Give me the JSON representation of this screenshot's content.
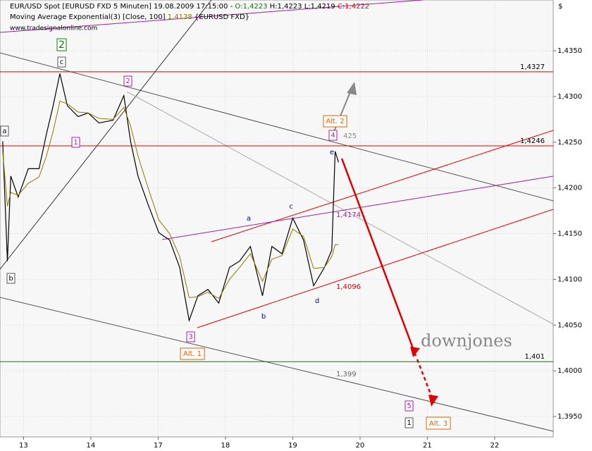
{
  "chart_data": {
    "type": "line",
    "title": "EUR/USD Spot [EURUSD FXD  5 Minuten] 19.08.2009 17:15:00 -",
    "quote": [
      "O:1,4223",
      "H:1,4223",
      "L:1,4219",
      "C:1,4222"
    ],
    "indicator": [
      "Moving Average Exponential(3) [Close, 100]",
      "1,4138",
      "{EURUSD FXD}"
    ],
    "source": "www.tradesignalonline.com",
    "currency": "$",
    "x": [
      -0.31,
      -0.24,
      -0.19,
      -0.08,
      0.07,
      0.23,
      0.34,
      0.44,
      0.54,
      0.65,
      0.81,
      0.96,
      1.12,
      1.33,
      1.49,
      1.59,
      1.7,
      1.85,
      2.01,
      2.17,
      2.32,
      2.46,
      2.59,
      2.74,
      2.9,
      3.06,
      3.21,
      3.37,
      3.55,
      3.69,
      3.84,
      4.0,
      4.16,
      4.31,
      4.47,
      4.58,
      4.63,
      4.68
    ],
    "series": [
      {
        "name": "EUR/USD",
        "color": "#000000",
        "values": [
          1.4251,
          1.412,
          1.4213,
          1.419,
          1.4221,
          1.4221,
          1.4259,
          1.429,
          1.4325,
          1.429,
          1.4278,
          1.4282,
          1.4271,
          1.4274,
          1.4301,
          1.4251,
          1.4213,
          1.4182,
          1.4151,
          1.4143,
          1.4113,
          1.4055,
          1.4082,
          1.4089,
          1.4074,
          1.4113,
          1.412,
          1.4136,
          1.4082,
          1.4136,
          1.4128,
          1.4167,
          1.4143,
          1.4093,
          1.4113,
          1.4132,
          1.424,
          1.4228
        ]
      },
      {
        "name": "EMA(3)",
        "color": "#8a7a00",
        "values": [
          1.424,
          1.418,
          1.4195,
          1.4192,
          1.4205,
          1.4212,
          1.4235,
          1.4262,
          1.4295,
          1.4292,
          1.4283,
          1.4282,
          1.4276,
          1.4275,
          1.4288,
          1.4268,
          1.4235,
          1.42,
          1.4165,
          1.415,
          1.4125,
          1.408,
          1.4081,
          1.4086,
          1.4079,
          1.41,
          1.4113,
          1.4128,
          1.4098,
          1.4122,
          1.4126,
          1.4155,
          1.4147,
          1.4112,
          1.4113,
          1.4125,
          1.4138,
          1.4138
        ]
      }
    ],
    "xlim": [
      -0.35,
      7.87
    ],
    "ylim": [
      1.39277,
      1.44055
    ],
    "xticks": [
      {
        "value": 0,
        "label": "13"
      },
      {
        "value": 1,
        "label": "14"
      },
      {
        "value": 2,
        "label": "17"
      },
      {
        "value": 3,
        "label": "18"
      },
      {
        "value": 4,
        "label": "19"
      },
      {
        "value": 5,
        "label": "20"
      },
      {
        "value": 6,
        "label": "21"
      },
      {
        "value": 7,
        "label": "22"
      }
    ],
    "yticks": [
      {
        "value": 1.395,
        "label": "1,3950"
      },
      {
        "value": 1.4,
        "label": "1,4000"
      },
      {
        "value": 1.405,
        "label": "1,4050"
      },
      {
        "value": 1.41,
        "label": "1,4100"
      },
      {
        "value": 1.415,
        "label": "1,4150"
      },
      {
        "value": 1.42,
        "label": "1,4200"
      },
      {
        "value": 1.425,
        "label": "1,4250"
      },
      {
        "value": 1.43,
        "label": "1,4300"
      },
      {
        "value": 1.435,
        "label": "1,4350"
      }
    ],
    "levels": [
      {
        "value": 1.4327,
        "label": "1,4327",
        "color": "#e00000"
      },
      {
        "value": 1.4246,
        "label": "1,4246",
        "color": "#e00000"
      },
      {
        "value": 1.401,
        "label": "1,401",
        "color": "#008000"
      }
    ],
    "grid": true,
    "annotations": [
      "2",
      "c",
      "2",
      "1",
      "a",
      "b",
      "3",
      "Alt. 1",
      "a",
      "b",
      "c",
      "d",
      "e",
      "Alt. 2",
      "4",
      "425",
      "1,4174",
      "1,4096",
      "1,399",
      "downjones",
      "5",
      "1",
      "Alt. 3"
    ]
  }
}
